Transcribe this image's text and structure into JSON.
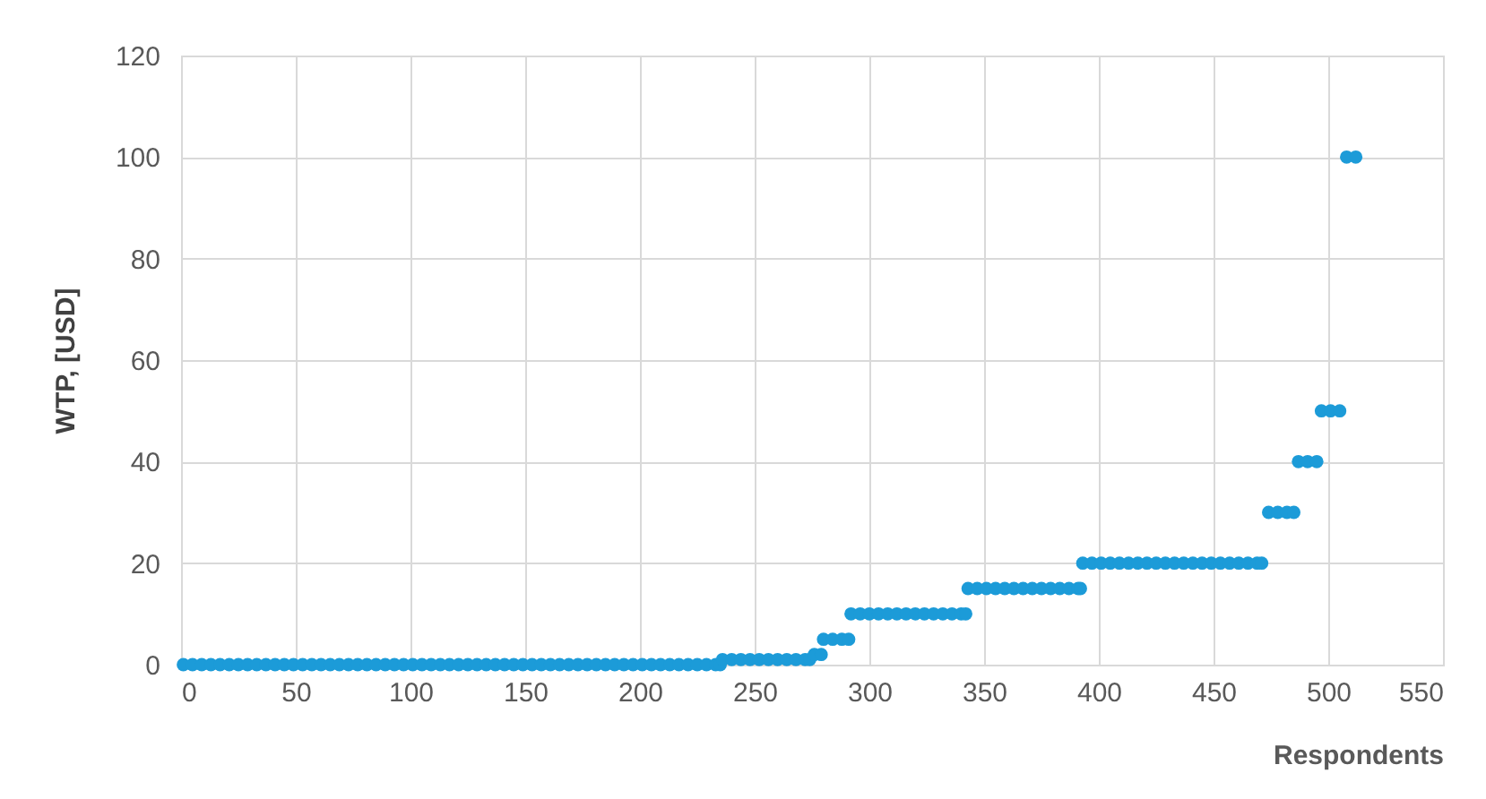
{
  "chart_data": {
    "type": "scatter",
    "xlabel": "Respondents",
    "ylabel": "WTP, [USD]",
    "xlim": [
      0,
      550
    ],
    "xticks": [
      0,
      50,
      100,
      150,
      200,
      250,
      300,
      350,
      400,
      450,
      500,
      550
    ],
    "ylim": [
      0,
      120
    ],
    "yticks": [
      0,
      20,
      40,
      60,
      80,
      100,
      120
    ],
    "grid": true,
    "marker": "circle",
    "x": [
      1,
      5,
      9,
      13,
      17,
      21,
      25,
      29,
      33,
      37,
      41,
      45,
      49,
      53,
      57,
      61,
      65,
      69,
      73,
      77,
      81,
      85,
      89,
      93,
      97,
      101,
      105,
      109,
      113,
      117,
      121,
      125,
      129,
      133,
      137,
      141,
      145,
      149,
      153,
      157,
      161,
      165,
      169,
      173,
      177,
      181,
      185,
      189,
      193,
      197,
      201,
      205,
      209,
      213,
      217,
      221,
      225,
      229,
      233,
      235,
      236,
      240,
      244,
      248,
      252,
      256,
      260,
      264,
      268,
      272,
      274,
      276,
      279,
      280,
      284,
      288,
      291,
      292,
      296,
      300,
      304,
      308,
      312,
      316,
      320,
      324,
      328,
      332,
      336,
      340,
      342,
      343,
      347,
      351,
      355,
      359,
      363,
      367,
      371,
      375,
      379,
      383,
      387,
      391,
      392,
      393,
      397,
      401,
      405,
      409,
      413,
      417,
      421,
      425,
      429,
      433,
      437,
      441,
      445,
      449,
      453,
      457,
      461,
      465,
      469,
      471,
      474,
      478,
      482,
      485,
      487,
      491,
      495,
      497,
      501,
      505,
      508,
      512
    ],
    "series": [
      {
        "color": "#1c9bd8",
        "values": [
          0,
          0,
          0,
          0,
          0,
          0,
          0,
          0,
          0,
          0,
          0,
          0,
          0,
          0,
          0,
          0,
          0,
          0,
          0,
          0,
          0,
          0,
          0,
          0,
          0,
          0,
          0,
          0,
          0,
          0,
          0,
          0,
          0,
          0,
          0,
          0,
          0,
          0,
          0,
          0,
          0,
          0,
          0,
          0,
          0,
          0,
          0,
          0,
          0,
          0,
          0,
          0,
          0,
          0,
          0,
          0,
          0,
          0,
          0,
          0,
          1,
          1,
          1,
          1,
          1,
          1,
          1,
          1,
          1,
          1,
          1,
          2,
          2,
          5,
          5,
          5,
          5,
          10,
          10,
          10,
          10,
          10,
          10,
          10,
          10,
          10,
          10,
          10,
          10,
          10,
          10,
          15,
          15,
          15,
          15,
          15,
          15,
          15,
          15,
          15,
          15,
          15,
          15,
          15,
          15,
          20,
          20,
          20,
          20,
          20,
          20,
          20,
          20,
          20,
          20,
          20,
          20,
          20,
          20,
          20,
          20,
          20,
          20,
          20,
          20,
          20,
          30,
          30,
          30,
          30,
          40,
          40,
          40,
          50,
          50,
          50,
          100,
          100
        ]
      }
    ]
  }
}
